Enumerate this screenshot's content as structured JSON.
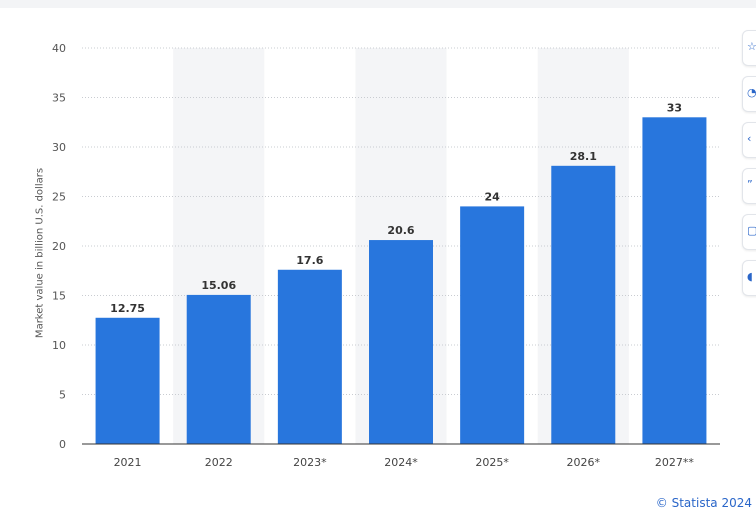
{
  "chart_data": {
    "type": "bar",
    "categories": [
      "2021",
      "2022",
      "2023*",
      "2024*",
      "2025*",
      "2026*",
      "2027**"
    ],
    "values": [
      12.75,
      15.06,
      17.6,
      20.6,
      24,
      28.1,
      33
    ],
    "value_labels": [
      "12.75",
      "15.06",
      "17.6",
      "20.6",
      "24",
      "28.1",
      "33"
    ],
    "title": "",
    "xlabel": "",
    "ylabel": "Market value in billion U.S. dollars",
    "ylim": [
      0,
      40
    ],
    "yticks": [
      "0",
      "5",
      "10",
      "15",
      "20",
      "25",
      "30",
      "35",
      "40"
    ],
    "bar_color": "#2876dd",
    "grid": true,
    "shaded_columns": [
      "2022",
      "2024*",
      "2026*"
    ]
  },
  "credit": "© Statista 2024",
  "toolbar": {
    "icons": [
      "star-icon",
      "bell-icon",
      "share-icon",
      "quote-icon",
      "print-icon",
      "download-icon"
    ]
  }
}
